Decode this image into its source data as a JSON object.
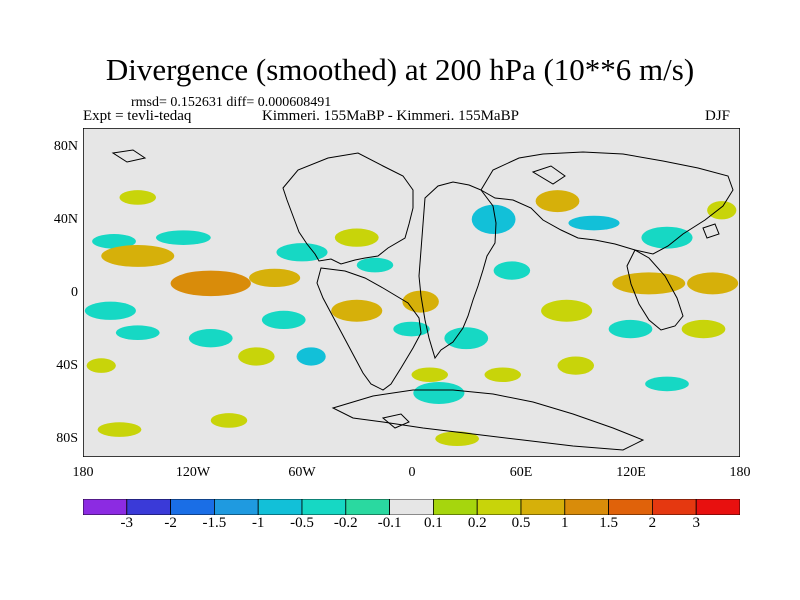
{
  "title": "Divergence (smoothed) at 200 hPa (10**6 m/s)",
  "stats": "rmsd= 0.152631 diff= 0.000608491",
  "expt_label": "Expt = tevli-tedaq",
  "comparison_label": "Kimmeri. 155MaBP - Kimmeri. 155MaBP",
  "season": "DJF",
  "lat_labels": [
    "80N",
    "40N",
    "0",
    "40S",
    "80S"
  ],
  "lon_labels": [
    "180",
    "120W",
    "60W",
    "0",
    "60E",
    "120E",
    "180"
  ],
  "colorbar": {
    "colors": [
      "#8c2be2",
      "#3a3ad8",
      "#1a6ee6",
      "#1f9ae0",
      "#12c0d8",
      "#16d8c4",
      "#2ad9a0",
      "#e6e6e6",
      "#a6d60d",
      "#c8d40a",
      "#d6b00a",
      "#d98c0a",
      "#e0620a",
      "#e53810",
      "#e8100f"
    ],
    "labels": [
      "-3",
      "-2",
      "-1.5",
      "-1",
      "-0.5",
      "-0.2",
      "-0.1",
      "0.1",
      "0.2",
      "0.5",
      "1",
      "1.5",
      "2",
      "3"
    ]
  },
  "chart_data": {
    "type": "heatmap",
    "title": "Divergence (smoothed) at 200 hPa (10**6 m/s)",
    "variable": "Divergence (smoothed)",
    "units": "10**6 m/s",
    "level": "200 hPa",
    "season": "DJF",
    "x_range": [
      -180,
      180
    ],
    "y_range": [
      -90,
      90
    ],
    "x_ticks": [
      -180,
      -120,
      -60,
      0,
      60,
      120,
      180
    ],
    "y_ticks": [
      80,
      40,
      0,
      -40,
      -80
    ],
    "contour_levels": [
      -3,
      -2,
      -1.5,
      -1,
      -0.5,
      -0.2,
      -0.1,
      0.1,
      0.2,
      0.5,
      1,
      1.5,
      2,
      3
    ],
    "features": [
      {
        "lon": -163,
        "lat": 28,
        "sign": "negative",
        "level": -0.2,
        "rx": 12,
        "ry": 4
      },
      {
        "lon": -165,
        "lat": -10,
        "sign": "negative",
        "level": -0.2,
        "rx": 14,
        "ry": 5
      },
      {
        "lon": -150,
        "lat": -22,
        "sign": "negative",
        "level": -0.2,
        "rx": 12,
        "ry": 4
      },
      {
        "lon": -125,
        "lat": 30,
        "sign": "negative",
        "level": -0.2,
        "rx": 15,
        "ry": 4
      },
      {
        "lon": -110,
        "lat": -25,
        "sign": "negative",
        "level": -0.2,
        "rx": 12,
        "ry": 5
      },
      {
        "lon": -60,
        "lat": 22,
        "sign": "negative",
        "level": -0.2,
        "rx": 14,
        "ry": 5
      },
      {
        "lon": -70,
        "lat": -15,
        "sign": "negative",
        "level": -0.2,
        "rx": 12,
        "ry": 5
      },
      {
        "lon": -55,
        "lat": -35,
        "sign": "negative",
        "level": -0.5,
        "rx": 8,
        "ry": 5
      },
      {
        "lon": -20,
        "lat": 15,
        "sign": "negative",
        "level": -0.2,
        "rx": 10,
        "ry": 4
      },
      {
        "lon": 15,
        "lat": -55,
        "sign": "negative",
        "level": -0.2,
        "rx": 14,
        "ry": 6
      },
      {
        "lon": 0,
        "lat": -20,
        "sign": "negative",
        "level": -0.2,
        "rx": 10,
        "ry": 4
      },
      {
        "lon": 45,
        "lat": 40,
        "sign": "negative",
        "level": -0.5,
        "rx": 12,
        "ry": 8
      },
      {
        "lon": 55,
        "lat": 12,
        "sign": "negative",
        "level": -0.2,
        "rx": 10,
        "ry": 5
      },
      {
        "lon": 30,
        "lat": -25,
        "sign": "negative",
        "level": -0.2,
        "rx": 12,
        "ry": 6
      },
      {
        "lon": 100,
        "lat": 38,
        "sign": "negative",
        "level": -0.5,
        "rx": 14,
        "ry": 4
      },
      {
        "lon": 140,
        "lat": 30,
        "sign": "negative",
        "level": -0.2,
        "rx": 14,
        "ry": 6
      },
      {
        "lon": 120,
        "lat": -20,
        "sign": "negative",
        "level": -0.2,
        "rx": 12,
        "ry": 5
      },
      {
        "lon": 140,
        "lat": -50,
        "sign": "negative",
        "level": -0.2,
        "rx": 12,
        "ry": 4
      },
      {
        "lon": -150,
        "lat": 20,
        "sign": "positive",
        "level": 0.5,
        "rx": 20,
        "ry": 6
      },
      {
        "lon": -110,
        "lat": 5,
        "sign": "positive",
        "level": 1,
        "rx": 22,
        "ry": 7
      },
      {
        "lon": -75,
        "lat": 8,
        "sign": "positive",
        "level": 0.5,
        "rx": 14,
        "ry": 5
      },
      {
        "lon": -150,
        "lat": 52,
        "sign": "positive",
        "level": 0.2,
        "rx": 10,
        "ry": 4
      },
      {
        "lon": -170,
        "lat": -40,
        "sign": "positive",
        "level": 0.2,
        "rx": 8,
        "ry": 4
      },
      {
        "lon": -160,
        "lat": -75,
        "sign": "positive",
        "level": 0.2,
        "rx": 12,
        "ry": 4
      },
      {
        "lon": -100,
        "lat": -70,
        "sign": "positive",
        "level": 0.2,
        "rx": 10,
        "ry": 4
      },
      {
        "lon": -85,
        "lat": -35,
        "sign": "positive",
        "level": 0.2,
        "rx": 10,
        "ry": 5
      },
      {
        "lon": -30,
        "lat": -10,
        "sign": "positive",
        "level": 0.5,
        "rx": 14,
        "ry": 6
      },
      {
        "lon": -30,
        "lat": 30,
        "sign": "positive",
        "level": 0.2,
        "rx": 12,
        "ry": 5
      },
      {
        "lon": 5,
        "lat": -5,
        "sign": "positive",
        "level": 0.5,
        "rx": 10,
        "ry": 6
      },
      {
        "lon": 10,
        "lat": -45,
        "sign": "positive",
        "level": 0.2,
        "rx": 10,
        "ry": 4
      },
      {
        "lon": 25,
        "lat": -80,
        "sign": "positive",
        "level": 0.2,
        "rx": 12,
        "ry": 4
      },
      {
        "lon": 50,
        "lat": -45,
        "sign": "positive",
        "level": 0.2,
        "rx": 10,
        "ry": 4
      },
      {
        "lon": 80,
        "lat": 50,
        "sign": "positive",
        "level": 0.5,
        "rx": 12,
        "ry": 6
      },
      {
        "lon": 85,
        "lat": -10,
        "sign": "positive",
        "level": 0.2,
        "rx": 14,
        "ry": 6
      },
      {
        "lon": 90,
        "lat": -40,
        "sign": "positive",
        "level": 0.2,
        "rx": 10,
        "ry": 5
      },
      {
        "lon": 130,
        "lat": 5,
        "sign": "positive",
        "level": 0.5,
        "rx": 20,
        "ry": 6
      },
      {
        "lon": 165,
        "lat": 5,
        "sign": "positive",
        "level": 0.5,
        "rx": 14,
        "ry": 6
      },
      {
        "lon": 160,
        "lat": -20,
        "sign": "positive",
        "level": 0.2,
        "rx": 12,
        "ry": 5
      },
      {
        "lon": 170,
        "lat": 45,
        "sign": "positive",
        "level": 0.2,
        "rx": 8,
        "ry": 5
      }
    ]
  }
}
